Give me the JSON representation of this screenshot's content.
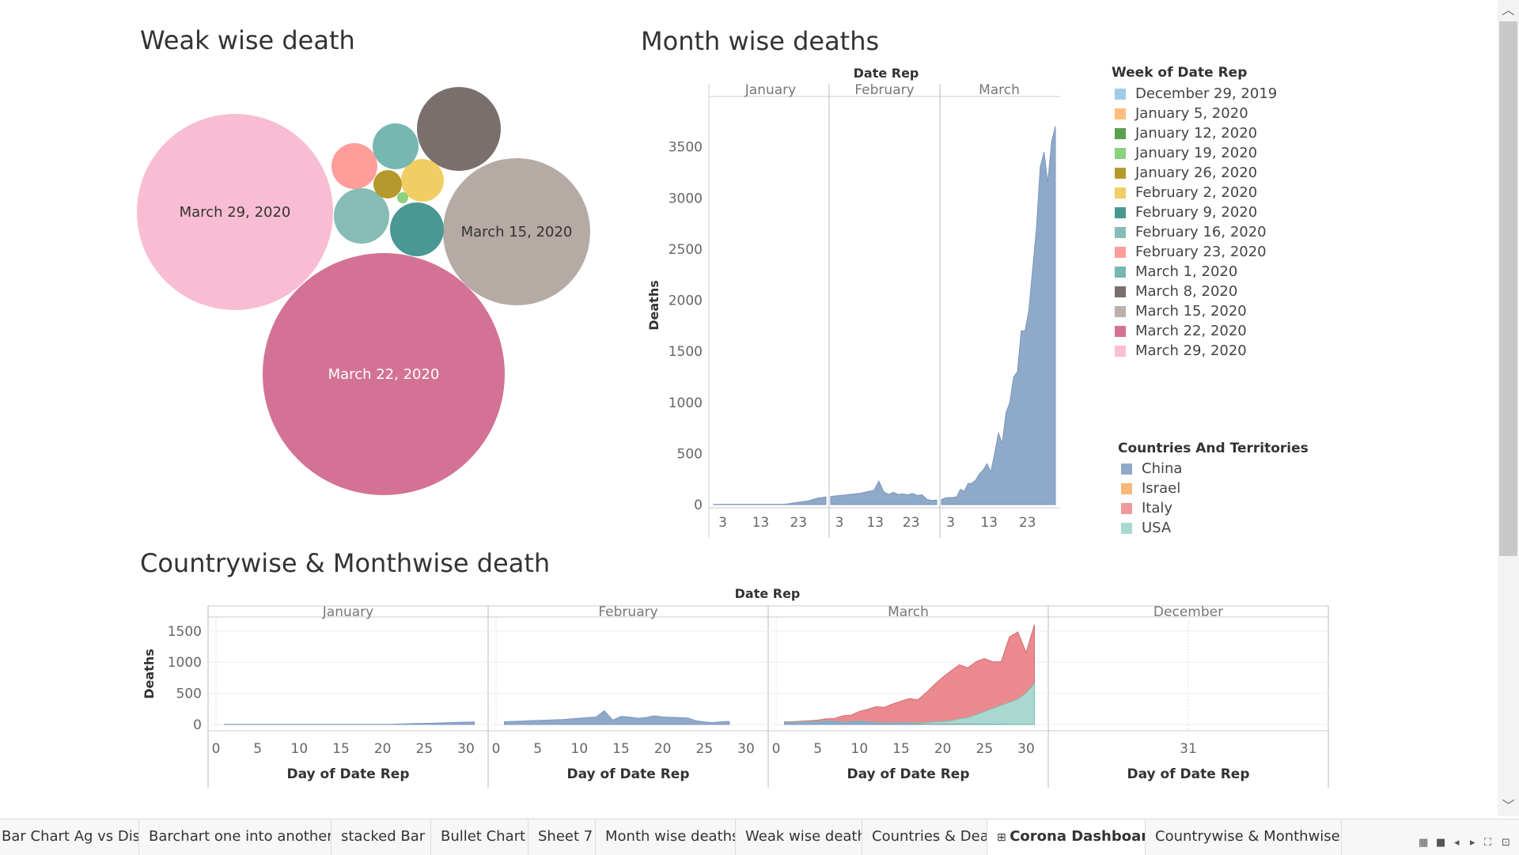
{
  "titles": {
    "weak": "Weak wise death",
    "month": "Month wise deaths",
    "country": "Countrywise & Monthwise death"
  },
  "bubbles": [
    {
      "label": "March 29, 2020",
      "color": "#f9bdd3",
      "text_color": "#333333"
    },
    {
      "label": "March 22, 2020",
      "color": "#d37295",
      "text_color": "#ffffff"
    },
    {
      "label": "March 15, 2020",
      "color": "#b5aaa4",
      "text_color": "#333333"
    },
    {
      "label": "",
      "color": "#79706e"
    },
    {
      "label": "",
      "color": "#499894"
    },
    {
      "label": "",
      "color": "#86bcb6"
    },
    {
      "label": "",
      "color": "#f1ce63"
    },
    {
      "label": "",
      "color": "#76b7b2"
    },
    {
      "label": "",
      "color": "#ff9d9a"
    },
    {
      "label": "",
      "color": "#b6992d"
    },
    {
      "label": "",
      "color": "#8cd17d"
    }
  ],
  "month_chart": {
    "header": "Date Rep",
    "ylabel": "Deaths",
    "months": [
      "January",
      "February",
      "March"
    ],
    "yticks": [
      "0",
      "500",
      "1000",
      "1500",
      "2000",
      "2500",
      "3000",
      "3500"
    ],
    "ylim": [
      0,
      3900
    ],
    "xticks": [
      "3",
      "13",
      "23"
    ],
    "color": "#8fa9c9",
    "series": [
      [
        3,
        3,
        3,
        3,
        3,
        3,
        3,
        3,
        3,
        3,
        3,
        3,
        3,
        3,
        3,
        3,
        3,
        3,
        3,
        5,
        8,
        15,
        20,
        25,
        30,
        35,
        45,
        55,
        65,
        70,
        75
      ],
      [
        80,
        85,
        90,
        95,
        100,
        105,
        110,
        120,
        130,
        140,
        230,
        125,
        100,
        120,
        100,
        105,
        95,
        110,
        90,
        95,
        50,
        40,
        45
      ],
      [
        50,
        65,
        70,
        70,
        75,
        150,
        130,
        205,
        210,
        240,
        300,
        340,
        400,
        320,
        500,
        700,
        600,
        900,
        1000,
        1250,
        1300,
        1700,
        1700,
        1900,
        2300,
        2700,
        3300,
        3450,
        3150,
        3550,
        3700
      ]
    ]
  },
  "legend_weeks": {
    "title": "Week of Date Rep",
    "items": [
      {
        "label": "December 29, 2019",
        "color": "#a0cbe8"
      },
      {
        "label": "January 5, 2020",
        "color": "#ffbe7d"
      },
      {
        "label": "January 12, 2020",
        "color": "#59a14f"
      },
      {
        "label": "January 19, 2020",
        "color": "#8cd17d"
      },
      {
        "label": "January 26, 2020",
        "color": "#b6992d"
      },
      {
        "label": "February 2, 2020",
        "color": "#f1ce63"
      },
      {
        "label": "February 9, 2020",
        "color": "#499894"
      },
      {
        "label": "February 16, 2020",
        "color": "#86bcb6"
      },
      {
        "label": "February 23, 2020",
        "color": "#ff9d9a"
      },
      {
        "label": "March 1, 2020",
        "color": "#76b7b2"
      },
      {
        "label": "March 8, 2020",
        "color": "#79706e"
      },
      {
        "label": "March 15, 2020",
        "color": "#bab0ac"
      },
      {
        "label": "March 22, 2020",
        "color": "#d37295"
      },
      {
        "label": "March 29, 2020",
        "color": "#fabfd2"
      }
    ]
  },
  "legend_countries": {
    "title": "Countries And Territories",
    "items": [
      {
        "label": "China",
        "color": "#8fa9c9"
      },
      {
        "label": "Israel",
        "color": "#f7b87a"
      },
      {
        "label": "Italy",
        "color": "#ef9a9a"
      },
      {
        "label": "USA",
        "color": "#a8d8cf"
      }
    ]
  },
  "country_chart": {
    "header": "Date Rep",
    "ylabel": "Deaths",
    "xlabel": "Day of Date Rep",
    "months": [
      "January",
      "February",
      "March",
      "December"
    ],
    "yticks": [
      "0",
      "500",
      "1000",
      "1500"
    ],
    "ylim": [
      0,
      1650
    ],
    "xticks": [
      "0",
      "5",
      "10",
      "15",
      "20",
      "25",
      "30"
    ],
    "dec_tick": "31",
    "china": [
      [
        2,
        2,
        2,
        2,
        2,
        2,
        2,
        2,
        2,
        2,
        2,
        2,
        2,
        2,
        2,
        2,
        2,
        2,
        2,
        3,
        4,
        8,
        12,
        15,
        18,
        20,
        25,
        30,
        35,
        38,
        40
      ],
      [
        45,
        50,
        55,
        60,
        65,
        70,
        75,
        80,
        90,
        100,
        110,
        120,
        220,
        70,
        130,
        120,
        100,
        110,
        140,
        120,
        115,
        110,
        105,
        60,
        40,
        30,
        45,
        50
      ],
      [
        40,
        35,
        45,
        45,
        50,
        60,
        55,
        40,
        50,
        60,
        45,
        35,
        25,
        30,
        25,
        15,
        15,
        10,
        10,
        10,
        10,
        10,
        10,
        8,
        8,
        6,
        6,
        5,
        5,
        4,
        4
      ]
    ],
    "italy": [
      5,
      10,
      10,
      15,
      20,
      30,
      40,
      100,
      100,
      150,
      200,
      250,
      250,
      300,
      350,
      400,
      380,
      500,
      630,
      750,
      850,
      950,
      900,
      1000,
      1050,
      1000,
      1000,
      1400,
      1480,
      1150,
      1600
    ],
    "usa": [
      0,
      0,
      0,
      0,
      0,
      0,
      0,
      0,
      0,
      0,
      0,
      0,
      0,
      0,
      5,
      10,
      10,
      20,
      30,
      40,
      50,
      80,
      100,
      150,
      200,
      250,
      300,
      350,
      400,
      500,
      650
    ]
  },
  "tabs": [
    {
      "label": "Bar Chart Ag vs Disag",
      "active": false
    },
    {
      "label": "Barchart one into another",
      "active": false
    },
    {
      "label": "stacked Bar",
      "active": false
    },
    {
      "label": "Bullet Chart",
      "active": false
    },
    {
      "label": "Sheet 7",
      "active": false
    },
    {
      "label": "Month wise deaths",
      "active": false
    },
    {
      "label": "Weak wise death",
      "active": false
    },
    {
      "label": "Countries & Death",
      "active": false
    },
    {
      "label": "Corona Dashboard",
      "active": true
    },
    {
      "label": "Countrywise & Monthwise death",
      "active": false
    }
  ]
}
